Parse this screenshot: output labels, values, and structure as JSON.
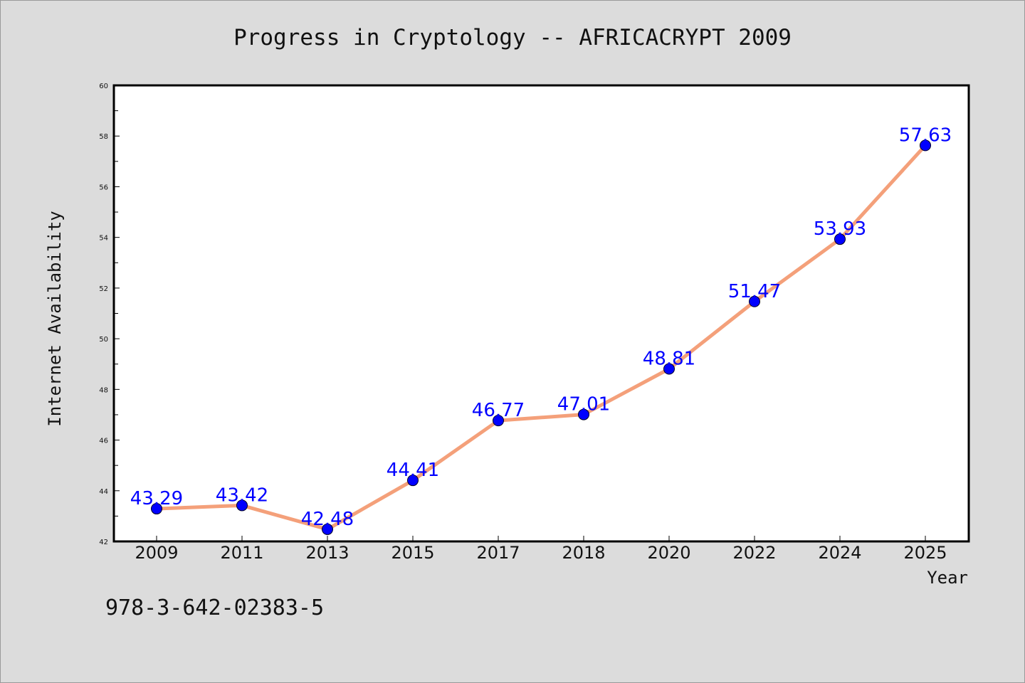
{
  "chart_data": {
    "type": "line",
    "title": "Progress in Cryptology -- AFRICACRYPT 2009",
    "xlabel": "Year",
    "ylabel": "Internet Availability",
    "categories": [
      "2009",
      "2011",
      "2013",
      "2015",
      "2017",
      "2018",
      "2020",
      "2022",
      "2024",
      "2025"
    ],
    "series": [
      {
        "values": [
          43.29,
          43.42,
          42.48,
          44.41,
          46.77,
          47.01,
          48.81,
          51.47,
          53.93,
          57.63
        ],
        "labels": [
          "43.29",
          "43.42",
          "42.48",
          "44.41",
          "46.77",
          "47.01",
          "48.81",
          "51.47",
          "53.93",
          "57.63"
        ],
        "line_color": "#f4a07a",
        "marker_color": "#0000ff"
      }
    ],
    "ylim": [
      42,
      60
    ],
    "yticks": [
      "42",
      "44",
      "46",
      "48",
      "50",
      "52",
      "54",
      "56",
      "58",
      "60"
    ],
    "grid": false,
    "legend": "none",
    "footnote": "978-3-642-02383-5"
  }
}
